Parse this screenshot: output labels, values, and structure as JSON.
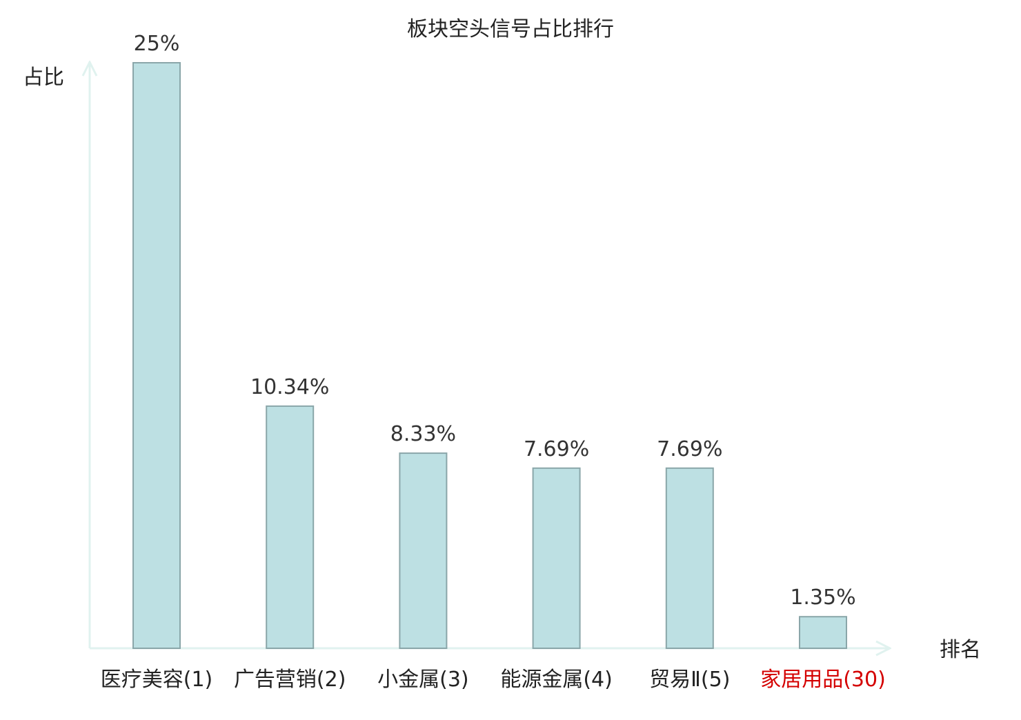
{
  "chart_data": {
    "type": "bar",
    "title": "板块空头信号占比排行",
    "xlabel": "排名",
    "ylabel": "占比",
    "categories": [
      "医疗美容(1)",
      "广告营销(2)",
      "小金属(3)",
      "能源金属(4)",
      "贸易Ⅱ(5)",
      "家居用品(30)"
    ],
    "values": [
      25,
      10.34,
      8.33,
      7.69,
      7.69,
      1.35
    ],
    "value_labels": [
      "25%",
      "10.34%",
      "8.33%",
      "7.69%",
      "7.69%",
      "1.35%"
    ],
    "highlighted_category_index": 5,
    "ylim": [
      0,
      25
    ],
    "grid": false,
    "legend": "none",
    "colors": {
      "bar_fill": "#bde0e3",
      "bar_stroke": "#8aa6a9",
      "axis": "#e0f2ef",
      "text": "#222222",
      "value_label": "#333333",
      "highlight": "#d40000"
    }
  }
}
